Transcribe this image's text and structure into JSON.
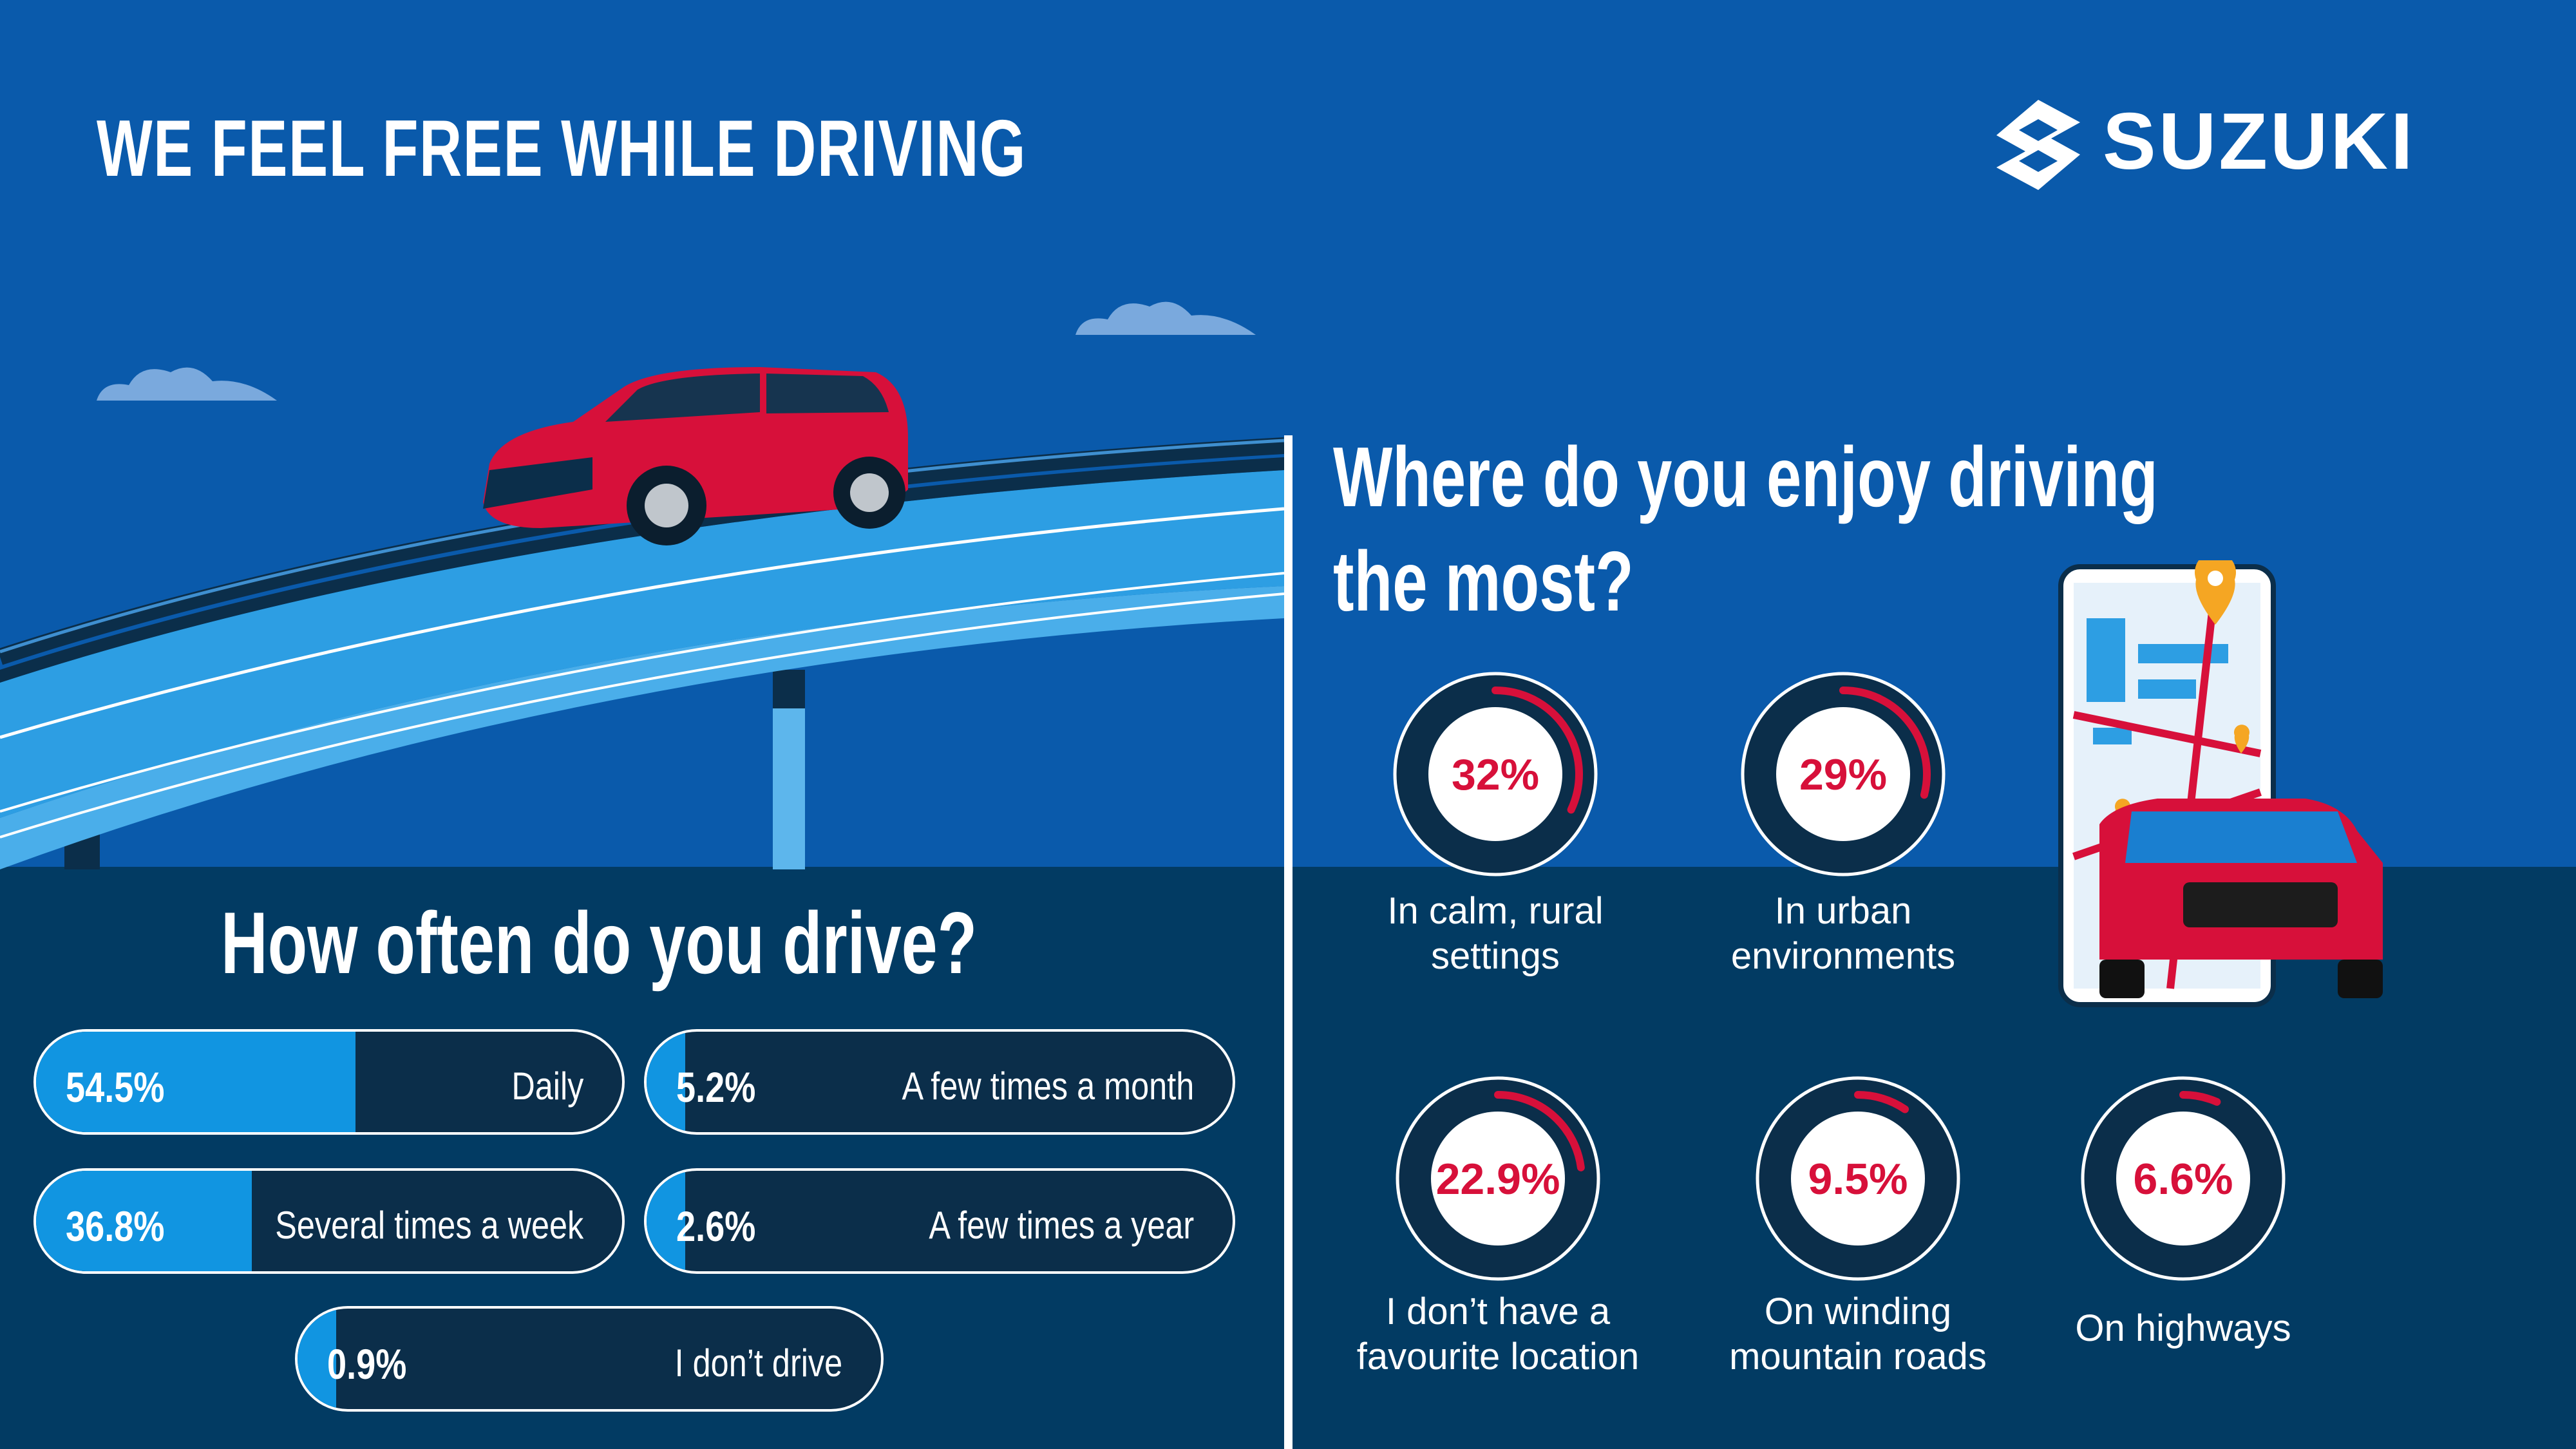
{
  "header": {
    "title": "WE FEEL FREE WHILE DRIVING",
    "brand": "SUZUKI"
  },
  "colors": {
    "background": "#0a5aab",
    "dark_band": "#023b63",
    "accent_red": "#d7103a",
    "bar_fill": "#1195e1",
    "bar_track": "#0b2e4a"
  },
  "left": {
    "question": "How often do you drive?"
  },
  "right": {
    "question_line1": "Where do you enjoy driving",
    "question_line2": "the most?"
  },
  "chart_data": [
    {
      "type": "bar",
      "title": "How often do you drive?",
      "categories": [
        "Daily",
        "Several times a week",
        "A few times a month",
        "A few times a year",
        "I don’t drive"
      ],
      "values": [
        54.5,
        36.8,
        5.2,
        2.6,
        0.9
      ],
      "labels": [
        "54.5%",
        "36.8%",
        "5.2%",
        "2.6%",
        "0.9%"
      ],
      "unit": "%"
    },
    {
      "type": "pie",
      "title": "Where do you enjoy driving the most?",
      "categories": [
        "In calm, rural settings",
        "In urban environments",
        "I don’t have a favourite location",
        "On winding mountain roads",
        "On highways"
      ],
      "categories_lines": [
        [
          "In calm, rural",
          "settings"
        ],
        [
          "In urban",
          "environments"
        ],
        [
          "I don’t have a",
          "favourite location"
        ],
        [
          "On winding",
          "mountain roads"
        ],
        [
          "On highways"
        ]
      ],
      "values": [
        32,
        29,
        22.9,
        9.5,
        6.6
      ],
      "labels": [
        "32%",
        "29%",
        "22.9%",
        "9.5%",
        "6.6%"
      ],
      "unit": "%"
    }
  ],
  "icons": [
    "suzuki-logo-icon",
    "car-illustration",
    "phone-map-illustration",
    "cloud-icon",
    "map-pin-icon"
  ]
}
